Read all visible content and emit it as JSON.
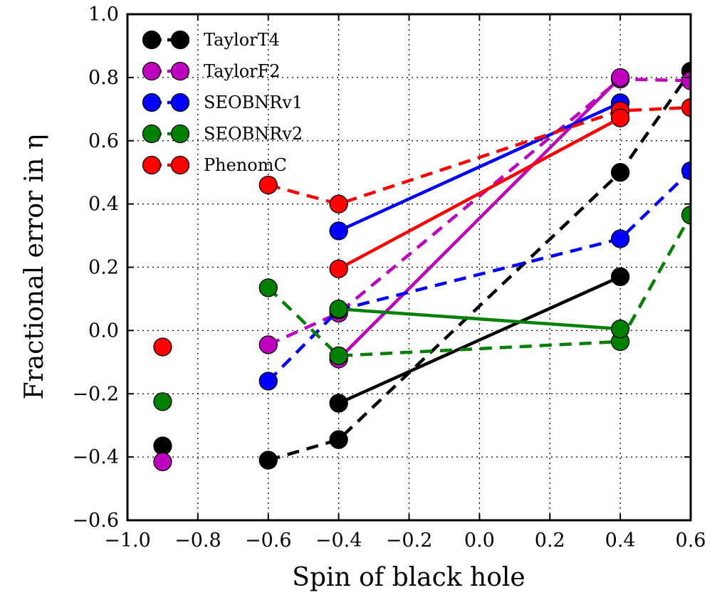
{
  "chart_data": {
    "type": "line",
    "xlabel": "Spin of black hole",
    "ylabel": "Fractional error in η",
    "xlim": [
      -1.0,
      0.6
    ],
    "ylim": [
      -0.6,
      1.0
    ],
    "xticks": [
      -1.0,
      -0.8,
      -0.6,
      -0.4,
      -0.2,
      0.0,
      0.2,
      0.4,
      0.6
    ],
    "xtick_labels": [
      "−1.0",
      "−0.8",
      "−0.6",
      "−0.4",
      "−0.2",
      "0.0",
      "0.2",
      "0.4",
      "0.6"
    ],
    "yticks": [
      -0.6,
      -0.4,
      -0.2,
      0.0,
      0.2,
      0.4,
      0.6,
      0.8,
      1.0
    ],
    "ytick_labels": [
      "−0.6",
      "−0.4",
      "−0.2",
      "0.0",
      "0.2",
      "0.4",
      "0.6",
      "0.8",
      "1.0"
    ],
    "grid": true,
    "legend_position": "top-left",
    "series": [
      {
        "name": "TaylorT4",
        "color": "#000000",
        "dashed": [
          [
            -0.6,
            -0.41
          ],
          [
            -0.4,
            -0.345
          ],
          [
            0.4,
            0.5
          ],
          [
            0.6,
            0.82
          ]
        ],
        "solid": [
          [
            -0.4,
            -0.23
          ],
          [
            0.4,
            0.17
          ]
        ],
        "points": [
          [
            -0.9,
            -0.365
          ]
        ]
      },
      {
        "name": "TaylorF2",
        "color": "#bf00bf",
        "dashed": [
          [
            -0.6,
            -0.045
          ],
          [
            -0.4,
            0.055
          ],
          [
            0.4,
            0.795
          ],
          [
            0.6,
            0.79
          ]
        ],
        "solid": [
          [
            -0.4,
            -0.09
          ],
          [
            0.4,
            0.8
          ]
        ],
        "points": [
          [
            -0.9,
            -0.415
          ]
        ]
      },
      {
        "name": "SEOBNRv1",
        "color": "#0000ff",
        "dashed": [
          [
            -0.6,
            -0.16
          ],
          [
            -0.4,
            0.065
          ],
          [
            0.4,
            0.29
          ],
          [
            0.6,
            0.505
          ]
        ],
        "solid": [
          [
            -0.4,
            0.315
          ],
          [
            0.4,
            0.72
          ]
        ],
        "points": []
      },
      {
        "name": "SEOBNRv2",
        "color": "#008000",
        "dashed": [
          [
            -0.6,
            0.135
          ],
          [
            -0.4,
            -0.08
          ],
          [
            0.4,
            -0.035
          ],
          [
            0.6,
            0.365
          ]
        ],
        "solid": [
          [
            -0.4,
            0.068
          ],
          [
            0.4,
            0.005
          ]
        ],
        "points": [
          [
            -0.9,
            -0.225
          ]
        ]
      },
      {
        "name": "PhenomC",
        "color": "#ff0000",
        "dashed": [
          [
            -0.6,
            0.46
          ],
          [
            -0.4,
            0.4
          ],
          [
            0.4,
            0.695
          ],
          [
            0.6,
            0.705
          ]
        ],
        "solid": [
          [
            -0.4,
            0.195
          ],
          [
            0.4,
            0.672
          ]
        ],
        "points": [
          [
            -0.9,
            -0.052
          ]
        ]
      }
    ]
  }
}
